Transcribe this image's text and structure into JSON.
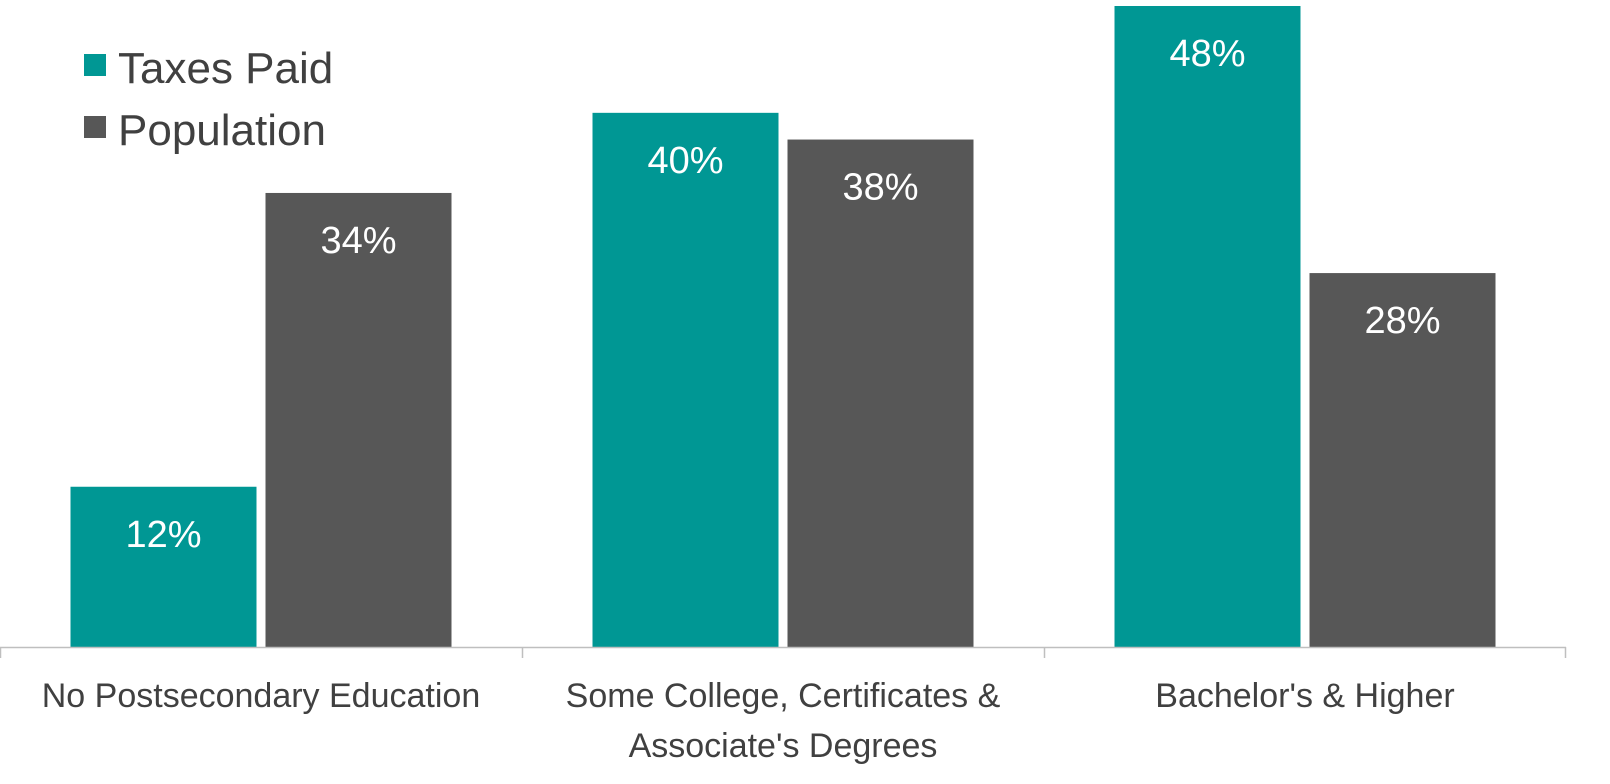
{
  "chart_data": {
    "type": "bar",
    "categories": [
      "No Postsecondary Education",
      "Some College, Certificates & Associate's Degrees",
      "Bachelor's & Higher"
    ],
    "series": [
      {
        "name": "Taxes Paid",
        "values": [
          12,
          40,
          48
        ],
        "labels": [
          "12%",
          "40%",
          "48%"
        ],
        "color": "#009794"
      },
      {
        "name": "Population",
        "values": [
          34,
          38,
          28
        ],
        "labels": [
          "34%",
          "38%",
          "28%"
        ],
        "color": "#575757"
      }
    ],
    "ylim": [
      0,
      48
    ],
    "grid": false,
    "legend_position": "top-left"
  }
}
